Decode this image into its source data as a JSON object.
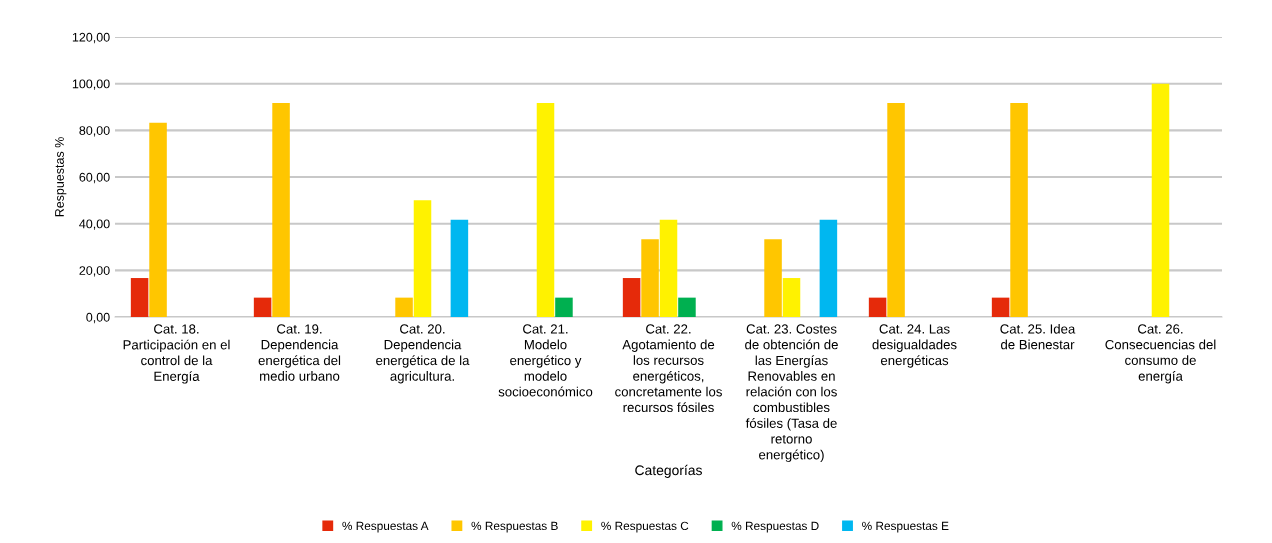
{
  "chart_data": {
    "type": "bar",
    "xlabel": "Categorías",
    "ylabel": "Respuestas %",
    "categories": [
      "Cat. 18.\nParticipación en el\ncontrol de la\nEnergía",
      "Cat. 19.\nDependencia\nenergética del\nmedio urbano",
      "Cat. 20.\nDependencia\nenergética de la\nagricultura.",
      "Cat. 21.\nModelo\nenergético y\nmodelo\nsocioeconómico",
      "Cat. 22.\nAgotamiento de\nlos recursos\nenergéticos,\nconcretamente los\nrecursos fósiles",
      "Cat. 23. Costes\nde obtención de\nlas Energías\nRenovables en\nrelación con los\ncombustibles\nfósiles (Tasa de\nretorno\nenergético)",
      "Cat. 24. Las\ndesigualdades\nenergéticas",
      "Cat. 25. Idea\nde Bienestar",
      "Cat. 26.\nConsecuencias del\nconsumo de\nenergía"
    ],
    "series": [
      {
        "name": "% Respuestas A",
        "color": "#e52a0a",
        "values": [
          16.7,
          8.3,
          0,
          0,
          16.7,
          0,
          8.3,
          8.3,
          0
        ]
      },
      {
        "name": "% Respuestas B",
        "color": "#ffc600",
        "values": [
          83.3,
          91.7,
          8.3,
          0,
          33.3,
          33.3,
          91.7,
          91.7,
          0
        ]
      },
      {
        "name": "% Respuestas C",
        "color": "#fff200",
        "values": [
          0,
          0,
          50,
          91.7,
          41.7,
          16.7,
          0,
          0,
          100
        ]
      },
      {
        "name": "% Respuestas D",
        "color": "#00b050",
        "values": [
          0,
          0,
          0,
          8.3,
          8.3,
          0,
          0,
          0,
          0
        ]
      },
      {
        "name": "% Respuestas E",
        "color": "#00b7f0",
        "values": [
          0,
          0,
          41.7,
          0,
          0,
          41.7,
          0,
          0,
          0
        ]
      }
    ],
    "ylim": [
      0,
      120
    ],
    "yticks": [
      {
        "value": 0,
        "label": "0,00"
      },
      {
        "value": 20,
        "label": "20,00"
      },
      {
        "value": 40,
        "label": "40,00"
      },
      {
        "value": 60,
        "label": "60,00"
      },
      {
        "value": 80,
        "label": "80,00"
      },
      {
        "value": 100,
        "label": "100,00"
      },
      {
        "value": 120,
        "label": "120,00"
      }
    ],
    "grid": "y",
    "legend": "bottom"
  }
}
